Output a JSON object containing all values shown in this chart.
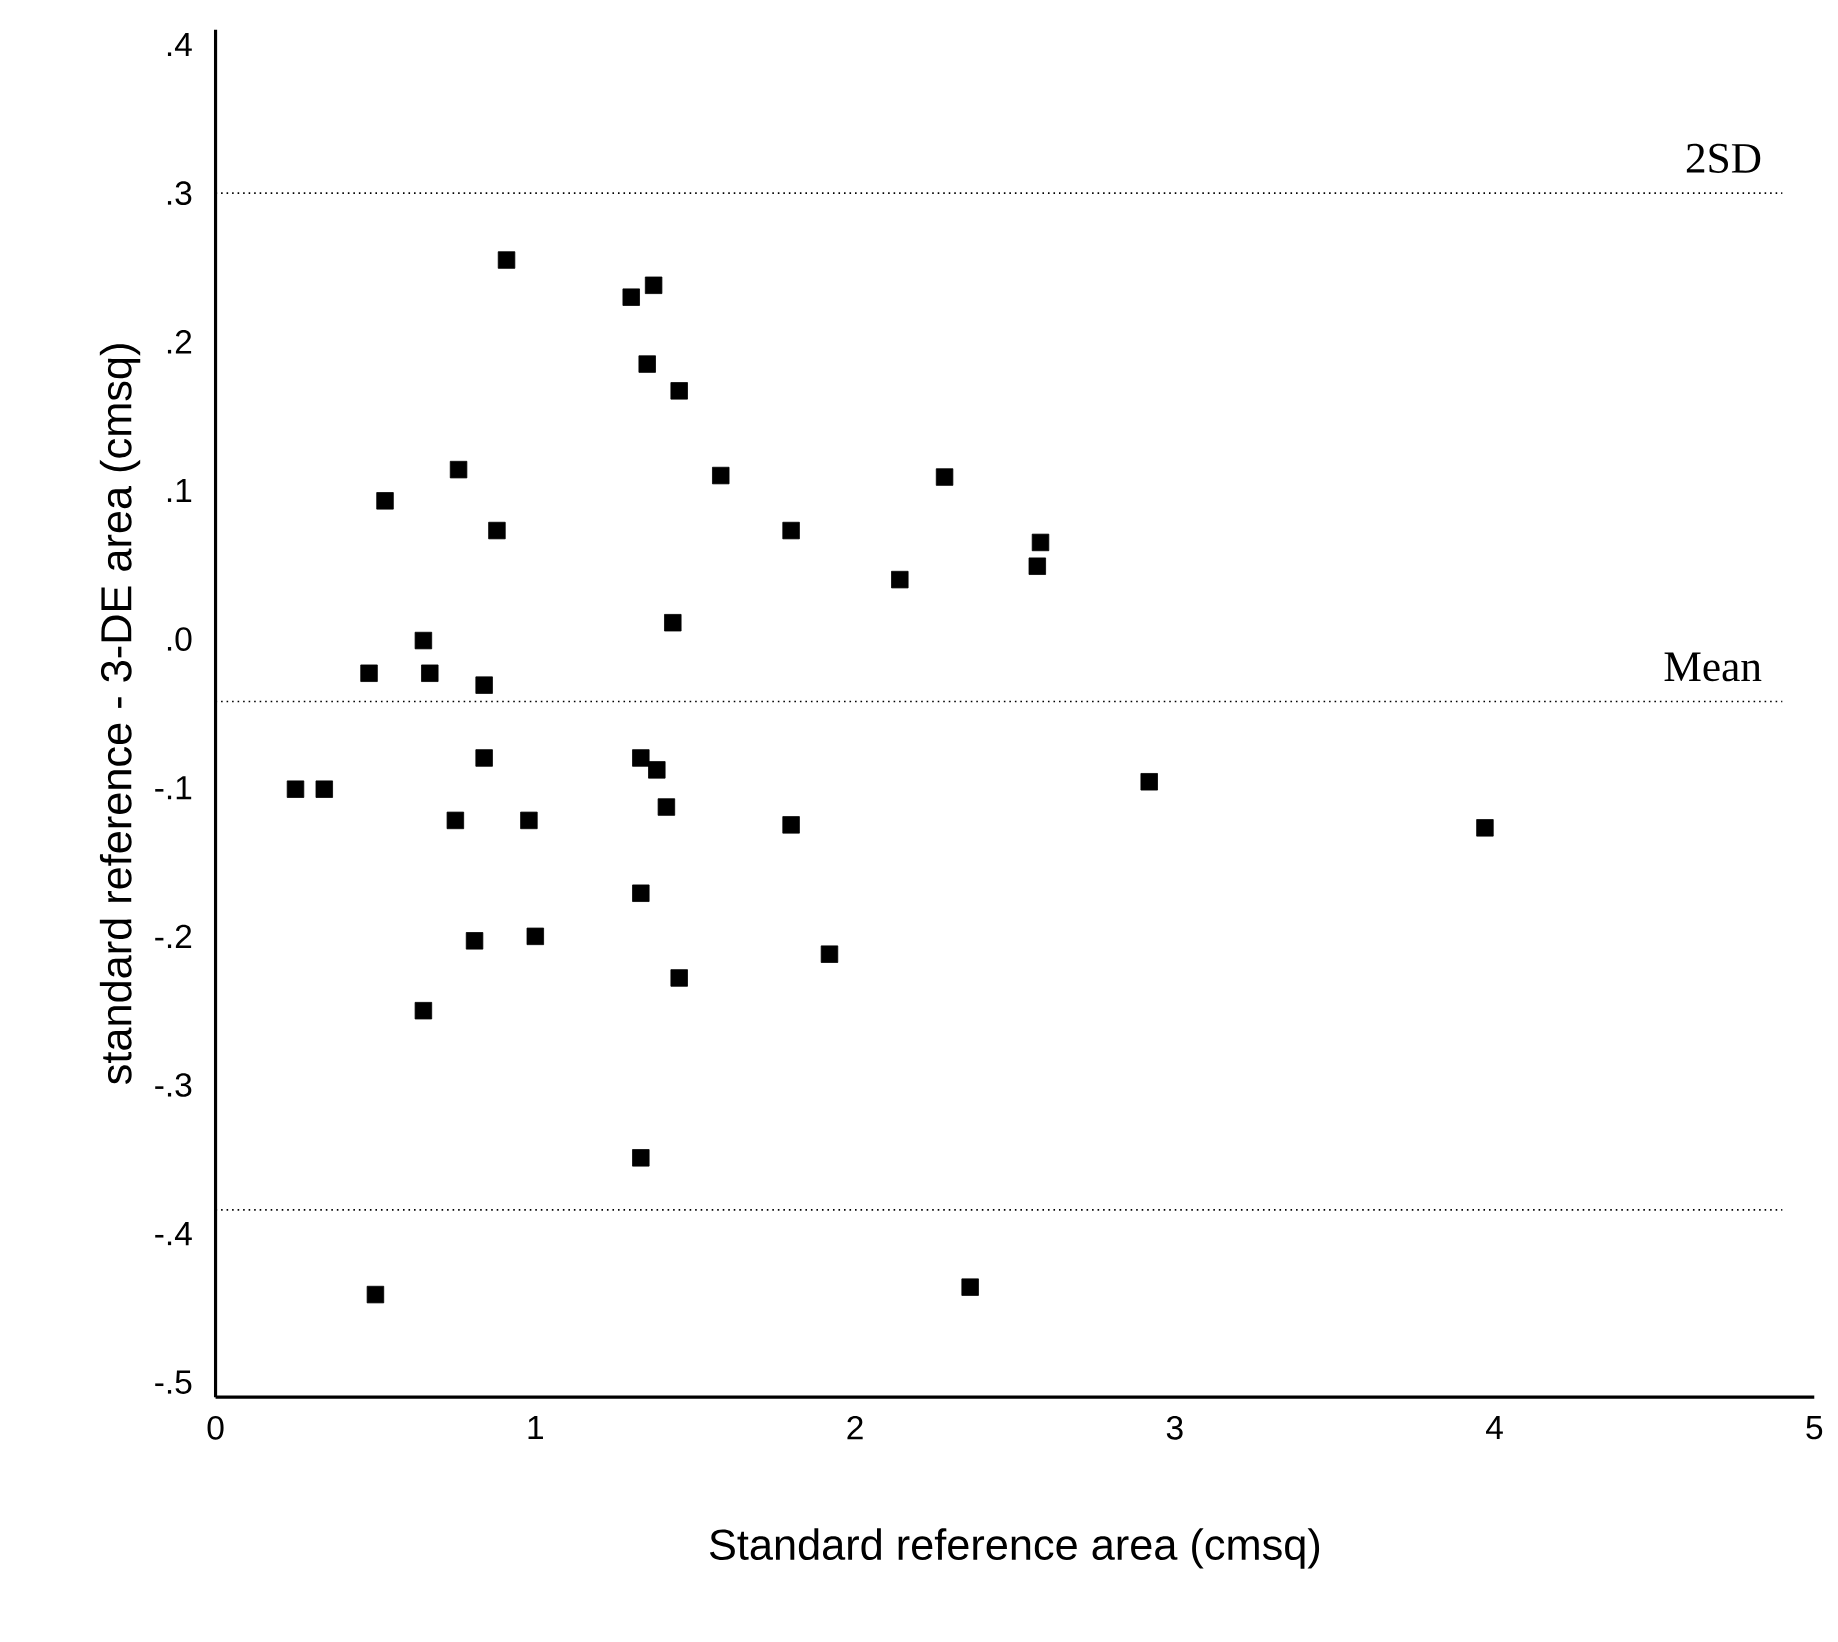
{
  "chart_data": {
    "type": "scatter",
    "xlabel": "Standard reference area (cmsq)",
    "ylabel": "standard reference - 3-DE area (cmsq)",
    "xlim": [
      0,
      5
    ],
    "xticks": [
      0,
      1,
      2,
      3,
      4,
      5
    ],
    "ylim": [
      -0.51,
      0.41
    ],
    "yticks": [
      {
        "value": 0.4,
        "label": ".4"
      },
      {
        "value": 0.3,
        "label": ".3"
      },
      {
        "value": 0.2,
        "label": ".2"
      },
      {
        "value": 0.1,
        "label": ".1"
      },
      {
        "value": 0,
        "label": ".0"
      },
      {
        "value": -0.1,
        "label": "-.1"
      },
      {
        "value": -0.2,
        "label": "-.2"
      },
      {
        "value": -0.3,
        "label": "-.3"
      },
      {
        "value": -0.4,
        "label": "-.4"
      },
      {
        "value": -0.5,
        "label": "-.5"
      }
    ],
    "marker": "square",
    "series": [
      {
        "color": "#000000",
        "x": [
          0.91,
          1.3,
          1.37,
          1.35,
          1.45,
          1.58,
          0.76,
          0.53,
          0.88,
          1.8,
          2.28,
          2.14,
          2.58,
          2.57,
          1.43,
          0.65,
          0.48,
          0.67,
          0.84,
          0.84,
          1.33,
          1.38,
          1.41,
          0.25,
          0.34,
          0.75,
          0.98,
          1.8,
          2.92,
          3.97,
          1.33,
          0.81,
          1.0,
          0.65,
          1.45,
          1.92,
          1.33,
          0.5,
          2.36
        ],
        "values": [
          0.255,
          0.23,
          0.238,
          0.185,
          0.167,
          0.11,
          0.114,
          0.093,
          0.073,
          0.073,
          0.109,
          0.04,
          0.065,
          0.049,
          0.011,
          -0.001,
          -0.023,
          -0.023,
          -0.031,
          -0.08,
          -0.08,
          -0.088,
          -0.113,
          -0.101,
          -0.101,
          -0.122,
          -0.122,
          -0.125,
          -0.096,
          -0.127,
          -0.171,
          -0.203,
          -0.2,
          -0.25,
          -0.228,
          -0.212,
          -0.349,
          -0.441,
          -0.436
        ]
      }
    ],
    "ref_lines": [
      {
        "axis": "y",
        "value": 0.3,
        "label": "2SD",
        "line_style": "dotted",
        "color": "#000000"
      },
      {
        "axis": "y",
        "value": -0.042,
        "label": "Mean",
        "line_style": "dotted",
        "color": "#000000"
      },
      {
        "axis": "y",
        "value": -0.384,
        "label": null,
        "line_style": "dotted",
        "color": "#000000"
      }
    ]
  }
}
